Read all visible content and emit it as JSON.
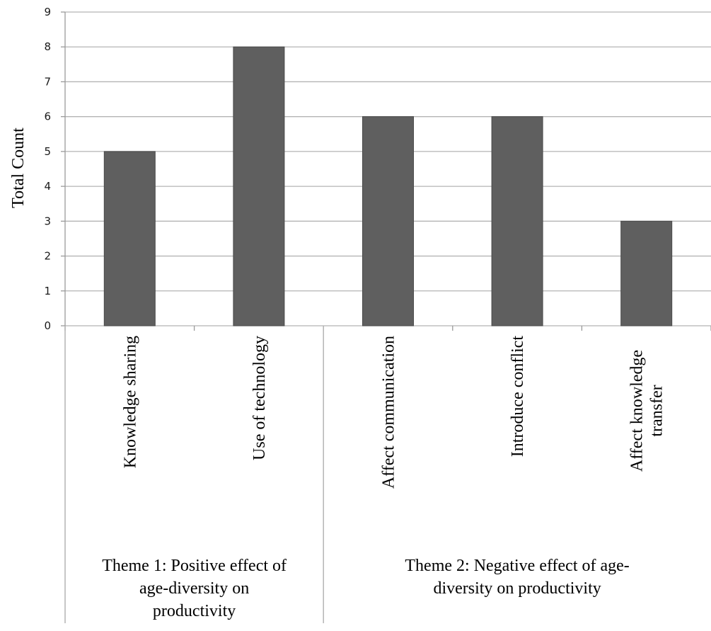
{
  "chart_data": {
    "type": "bar",
    "title": "",
    "ylabel": "Total Count",
    "xlabel": "",
    "ylim": [
      0,
      9
    ],
    "yticks": [
      0,
      1,
      2,
      3,
      4,
      5,
      6,
      7,
      8,
      9
    ],
    "grid": true,
    "legend": "none",
    "bar_color": "#5f5f5f",
    "categories": [
      "Knowledge sharing",
      "Use of technology",
      "Affect communication",
      "Introduce conflict",
      "Affect knowledge transfer"
    ],
    "values": [
      5,
      8,
      6,
      6,
      3
    ],
    "groups": [
      {
        "label_lines": [
          "Theme 1: Positive effect of",
          "age-diversity on",
          "productivity"
        ],
        "categories": [
          0,
          1
        ]
      },
      {
        "label_lines": [
          "Theme 2: Negative effect of age-",
          "diversity on productivity"
        ],
        "categories": [
          2,
          3,
          4
        ]
      }
    ]
  }
}
